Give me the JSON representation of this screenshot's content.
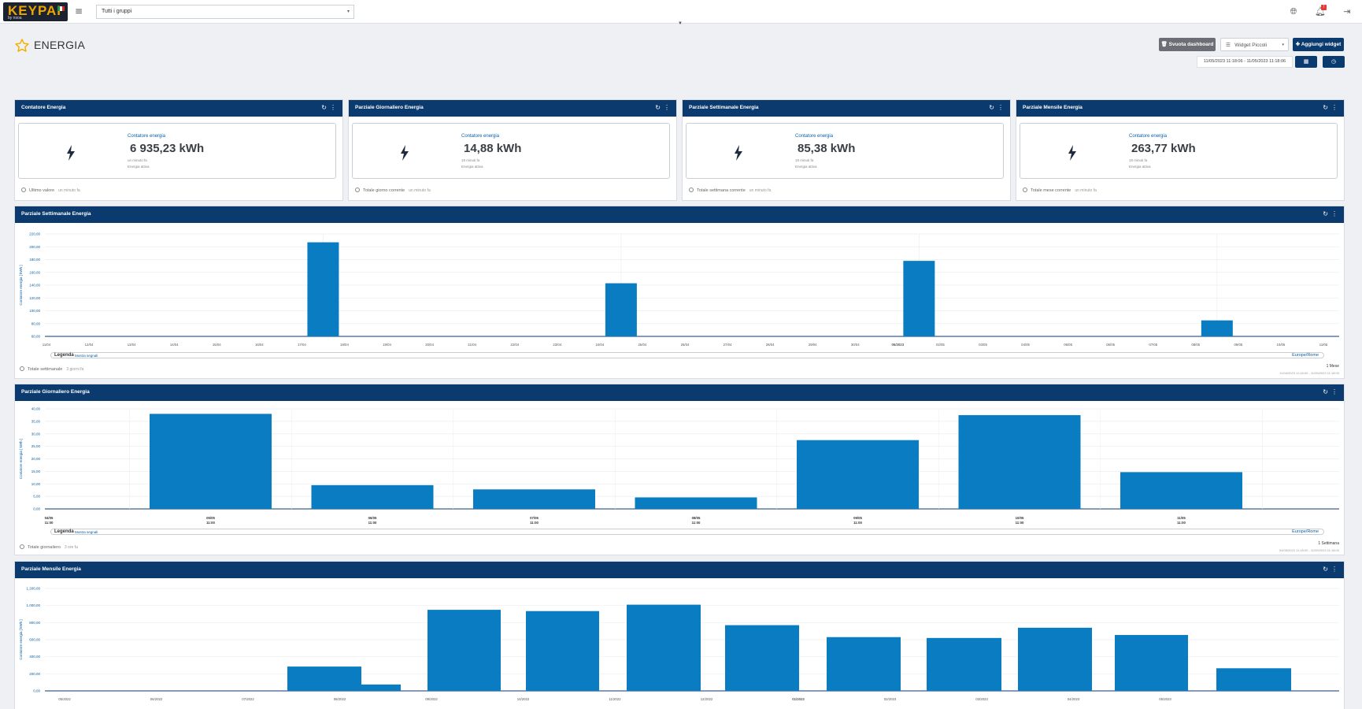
{
  "header": {
    "logo_text": "KEYPAI",
    "logo_sub": "by nsoa",
    "group_select": "Tutti i gruppi",
    "menu_icon": "≡"
  },
  "page": {
    "title": "ENERGIA"
  },
  "toolbar": {
    "clear_label": "Svuota dashboard",
    "widget_size_label": "Widget Piccoli",
    "add_label": "Aggiungi widget",
    "date_range": "11/05/2023 11:18:06 - 11/05/2023 11:18:06"
  },
  "kpis": [
    {
      "title": "Contatore Energia",
      "label": "Contatore energia",
      "value": "6 935,23 kWh",
      "sub1": "un minuto fa",
      "sub2": "Energia attiva",
      "footer": "Ultimo valore",
      "footer_ago": "un minuto fa"
    },
    {
      "title": "Parziale Giornaliero Energia",
      "label": "Contatore energia",
      "value": "14,88 kWh",
      "sub1": "18 minuti fa",
      "sub2": "Energia attiva",
      "footer": "Totale giorno corrente",
      "footer_ago": "un minuto fa"
    },
    {
      "title": "Parziale Settimanale Energia",
      "label": "Contatore energia",
      "value": "85,38 kWh",
      "sub1": "18 minuti fa",
      "sub2": "Energia attiva",
      "footer": "Totale settimana corrente",
      "footer_ago": "un minuto fa"
    },
    {
      "title": "Parziale Mensile Energia",
      "label": "Contatore energia",
      "value": "263,77 kWh",
      "sub1": "18 minuti fa",
      "sub2": "Energia attiva",
      "footer": "Totale mese corrente",
      "footer_ago": "un minuto fa"
    }
  ],
  "charts": [
    {
      "title": "Parziale Settimanale Energia",
      "legend": "Legenda",
      "legend_mode": "Mostra segnali",
      "timezone": "Europe/Rome",
      "footer": "Totale settimanale",
      "footer_ago": "3 giorni fa",
      "right1": "1 Mese",
      "right2": "11/04/2023 11:18:00 - 11/05/2023 11:18:00"
    },
    {
      "title": "Parziale Giornaliero Energia",
      "legend": "Legenda",
      "legend_mode": "Mostra segnali",
      "timezone": "Europe/Rome",
      "footer": "Totale giornaliero",
      "footer_ago": "3 ore fa",
      "right1": "1 Settimana",
      "right2": "04/05/2023 11:18:00 - 11/05/2023 11:18:00"
    },
    {
      "title": "Parziale Mensile Energia"
    }
  ],
  "chart_data": [
    {
      "type": "bar",
      "title": "Parziale Settimanale Energia",
      "ylabel": "Contatore energia [ kWh ]",
      "ylim": [
        60,
        220
      ],
      "yticks": [
        "220,00",
        "200,00",
        "180,00",
        "160,00",
        "140,00",
        "120,00",
        "100,00",
        "80,00",
        "60,00"
      ],
      "x_labels": [
        "11/04",
        "12/04",
        "13/04",
        "14/04",
        "15/04",
        "16/04",
        "17/04",
        "18/04",
        "19/04",
        "20/04",
        "21/04",
        "22/04",
        "23/04",
        "24/04",
        "25/04",
        "26/04",
        "27/04",
        "28/04",
        "29/04",
        "30/04",
        "05/2023",
        "02/05",
        "03/05",
        "04/05",
        "05/05",
        "06/05",
        "07/05",
        "08/05",
        "09/05",
        "10/05",
        "11/05"
      ],
      "bars": [
        {
          "x": "17/04",
          "value": 207
        },
        {
          "x": "24/04",
          "value": 143
        },
        {
          "x": "05/2023",
          "value": 178
        },
        {
          "x": "08/05",
          "value": 85
        }
      ],
      "grid": true
    },
    {
      "type": "bar",
      "title": "Parziale Giornaliero Energia",
      "ylabel": "Contatore energia [ kWh ]",
      "ylim": [
        0,
        40
      ],
      "yticks": [
        "40,00",
        "35,00",
        "30,00",
        "25,00",
        "20,00",
        "15,00",
        "10,00",
        "5,00",
        "0,00"
      ],
      "categories": [
        "04/05\n11:00",
        "05/05\n11:00",
        "06/05\n11:00",
        "07/05\n11:00",
        "08/05\n11:00",
        "09/05\n11:00",
        "10/05\n11:00",
        "11/05\n11:00"
      ],
      "values": [
        0,
        38,
        9.5,
        7.8,
        4.6,
        27.5,
        37.5,
        14.7
      ],
      "grid": true
    },
    {
      "type": "bar",
      "title": "Parziale Mensile Energia",
      "ylabel": "Contatore energia [ kWh ]",
      "ylim": [
        0,
        1200
      ],
      "yticks": [
        "1.200,00",
        "1.000,00",
        "800,00",
        "600,00",
        "400,00",
        "200,00",
        "0,00"
      ],
      "x_labels": [
        "05/2022",
        "06/2022",
        "07/2022",
        "08/2022",
        "09/2022",
        "10/2022",
        "11/2022",
        "12/2022",
        "01/2023",
        "02/2023",
        "03/2023",
        "04/2023",
        "05/2023"
      ],
      "bars": [
        {
          "x": "08/2022",
          "value": 285,
          "w": 0.8
        },
        {
          "x": "08/2022+",
          "value": 75
        },
        {
          "x": "09/2022",
          "value": 950
        },
        {
          "x": "10/2022",
          "value": 935
        },
        {
          "x": "11/2022",
          "value": 1010
        },
        {
          "x": "12/2022",
          "value": 770
        },
        {
          "x": "01/2023",
          "value": 630
        },
        {
          "x": "02/2023",
          "value": 620
        },
        {
          "x": "03/2023",
          "value": 740
        },
        {
          "x": "04/2023",
          "value": 655
        },
        {
          "x": "05/2023",
          "value": 265
        }
      ],
      "grid": true
    }
  ]
}
